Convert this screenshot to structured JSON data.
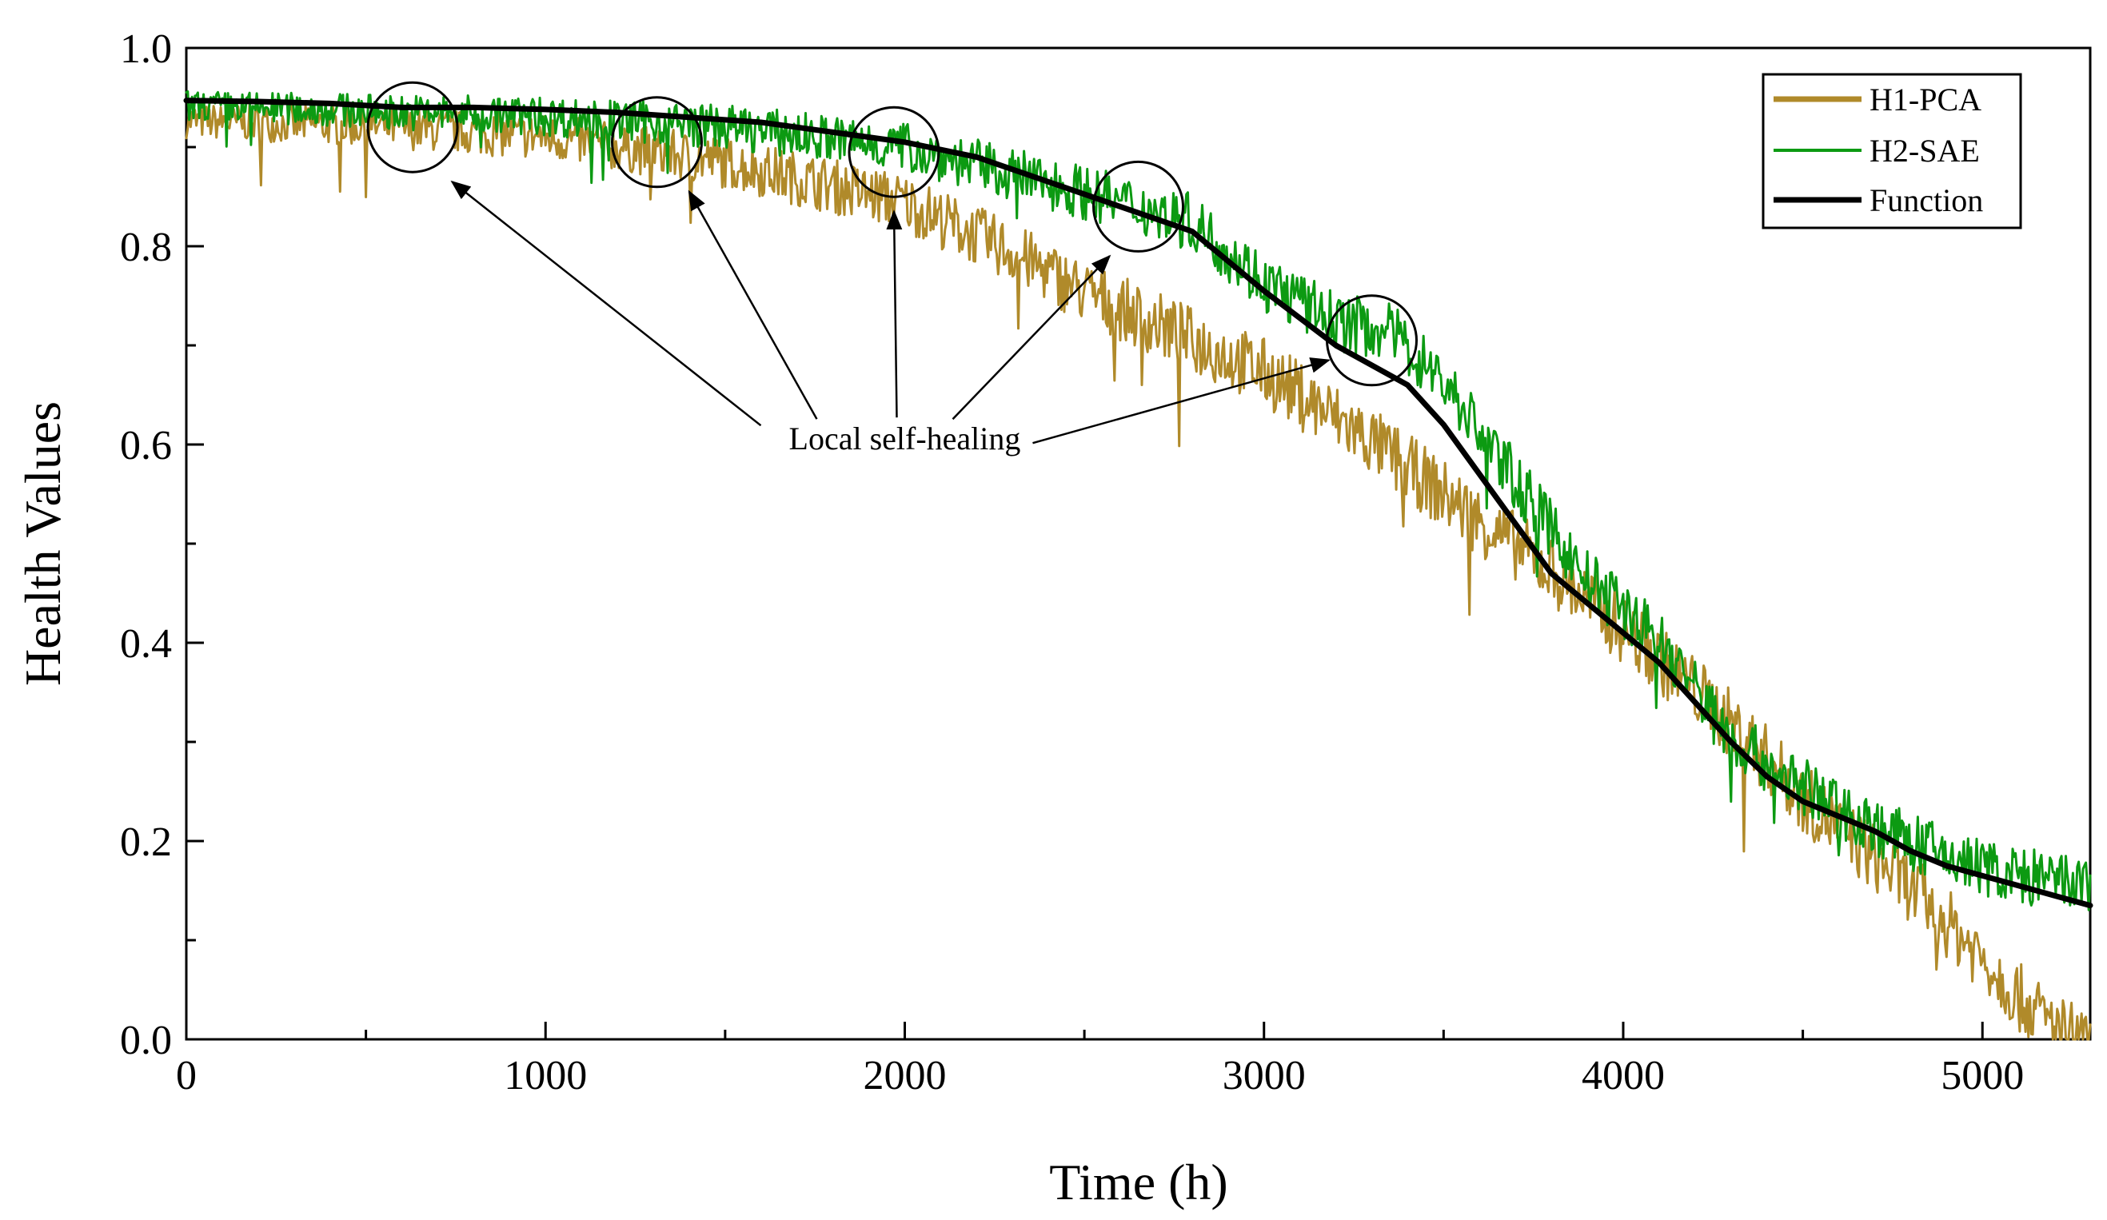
{
  "chart_data": {
    "type": "line",
    "title": "",
    "xlabel": "Time (h)",
    "ylabel": "Health Values",
    "xlim": [
      0,
      5300
    ],
    "ylim": [
      0.0,
      1.0
    ],
    "xticks": [
      0,
      1000,
      2000,
      3000,
      4000,
      5000
    ],
    "xtick_labels": [
      "0",
      "1000",
      "2000",
      "3000",
      "4000",
      "5000"
    ],
    "yticks": [
      0.0,
      0.2,
      0.4,
      0.6,
      0.8,
      1.0
    ],
    "ytick_labels": [
      "0.0",
      "0.2",
      "0.4",
      "0.6",
      "0.8",
      "1.0"
    ],
    "grid": false,
    "legend_position": "top-right",
    "series": [
      {
        "name": "H1-PCA",
        "color": "#B08A2A",
        "noise": 0.035,
        "x": [
          0,
          500,
          1000,
          1500,
          2000,
          2300,
          2500,
          3000,
          3300,
          3600,
          3800,
          4000,
          4200,
          4400,
          4500,
          4600,
          4800,
          5000,
          5100,
          5200,
          5300
        ],
        "y": [
          0.93,
          0.925,
          0.915,
          0.89,
          0.85,
          0.8,
          0.76,
          0.68,
          0.61,
          0.53,
          0.48,
          0.42,
          0.36,
          0.29,
          0.25,
          0.22,
          0.16,
          0.09,
          0.05,
          0.02,
          0.0
        ]
      },
      {
        "name": "H2-SAE",
        "color": "#0C9A12",
        "noise": 0.03,
        "x": [
          0,
          500,
          1000,
          1500,
          2000,
          2500,
          2800,
          3000,
          3200,
          3350,
          3500,
          3700,
          3900,
          4100,
          4300,
          4500,
          4700,
          4900,
          5100,
          5300
        ],
        "y": [
          0.945,
          0.94,
          0.935,
          0.925,
          0.905,
          0.86,
          0.83,
          0.77,
          0.73,
          0.72,
          0.67,
          0.57,
          0.47,
          0.41,
          0.31,
          0.26,
          0.22,
          0.19,
          0.17,
          0.16
        ]
      },
      {
        "name": "Function",
        "color": "#000000",
        "noise": 0,
        "x": [
          0,
          200,
          400,
          600,
          800,
          1000,
          1200,
          1400,
          1600,
          1800,
          2000,
          2200,
          2400,
          2600,
          2800,
          3000,
          3200,
          3300,
          3400,
          3500,
          3600,
          3700,
          3800,
          3900,
          4000,
          4100,
          4200,
          4300,
          4400,
          4500,
          4600,
          4700,
          4800,
          4900,
          5000,
          5100,
          5200,
          5300
        ],
        "y": [
          0.947,
          0.946,
          0.944,
          0.94,
          0.94,
          0.938,
          0.935,
          0.93,
          0.925,
          0.915,
          0.905,
          0.89,
          0.865,
          0.84,
          0.815,
          0.755,
          0.7,
          0.68,
          0.66,
          0.62,
          0.57,
          0.52,
          0.47,
          0.44,
          0.41,
          0.38,
          0.34,
          0.3,
          0.265,
          0.24,
          0.225,
          0.21,
          0.19,
          0.175,
          0.165,
          0.155,
          0.145,
          0.135
        ]
      }
    ],
    "annotations": {
      "text": "Local self-healing",
      "text_anchor": {
        "x": 2000,
        "y": 0.595
      },
      "circles": [
        {
          "x": 630,
          "y": 0.92
        },
        {
          "x": 1310,
          "y": 0.905
        },
        {
          "x": 1970,
          "y": 0.895
        },
        {
          "x": 2650,
          "y": 0.84
        },
        {
          "x": 3300,
          "y": 0.705
        }
      ],
      "arrow_targets": [
        {
          "x": 740,
          "y": 0.865
        },
        {
          "x": 1400,
          "y": 0.855
        },
        {
          "x": 1970,
          "y": 0.835
        },
        {
          "x": 2570,
          "y": 0.79
        },
        {
          "x": 3180,
          "y": 0.685
        }
      ]
    }
  }
}
